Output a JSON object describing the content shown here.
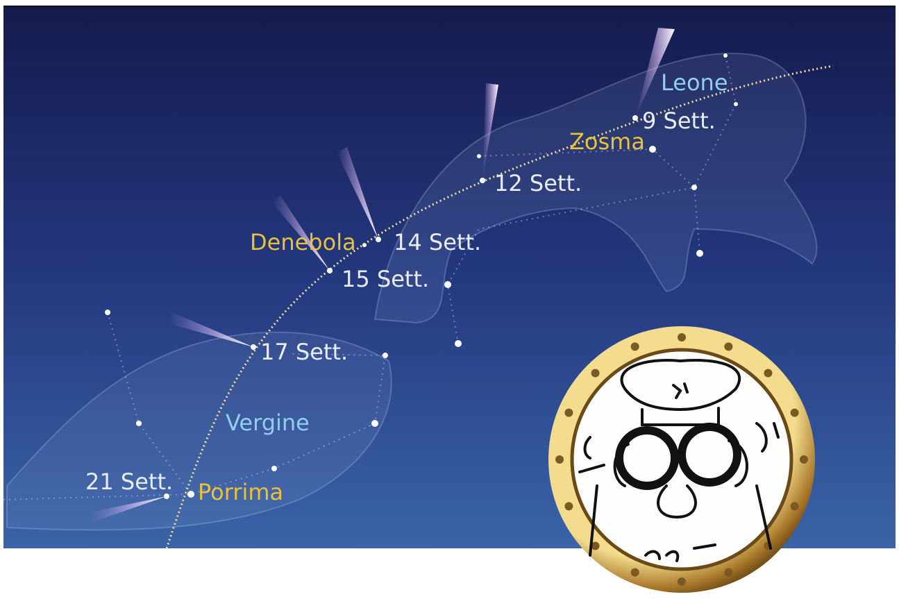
{
  "constellations": {
    "leo": "Leone",
    "virgo": "Vergine"
  },
  "stars": {
    "zosma": "Zosma",
    "denebola": "Denebola",
    "porrima": "Porrima"
  },
  "dates": [
    "9 Sett.",
    "12 Sett.",
    "14 Sett.",
    "15 Sett.",
    "17 Sett.",
    "21 Sett."
  ]
}
